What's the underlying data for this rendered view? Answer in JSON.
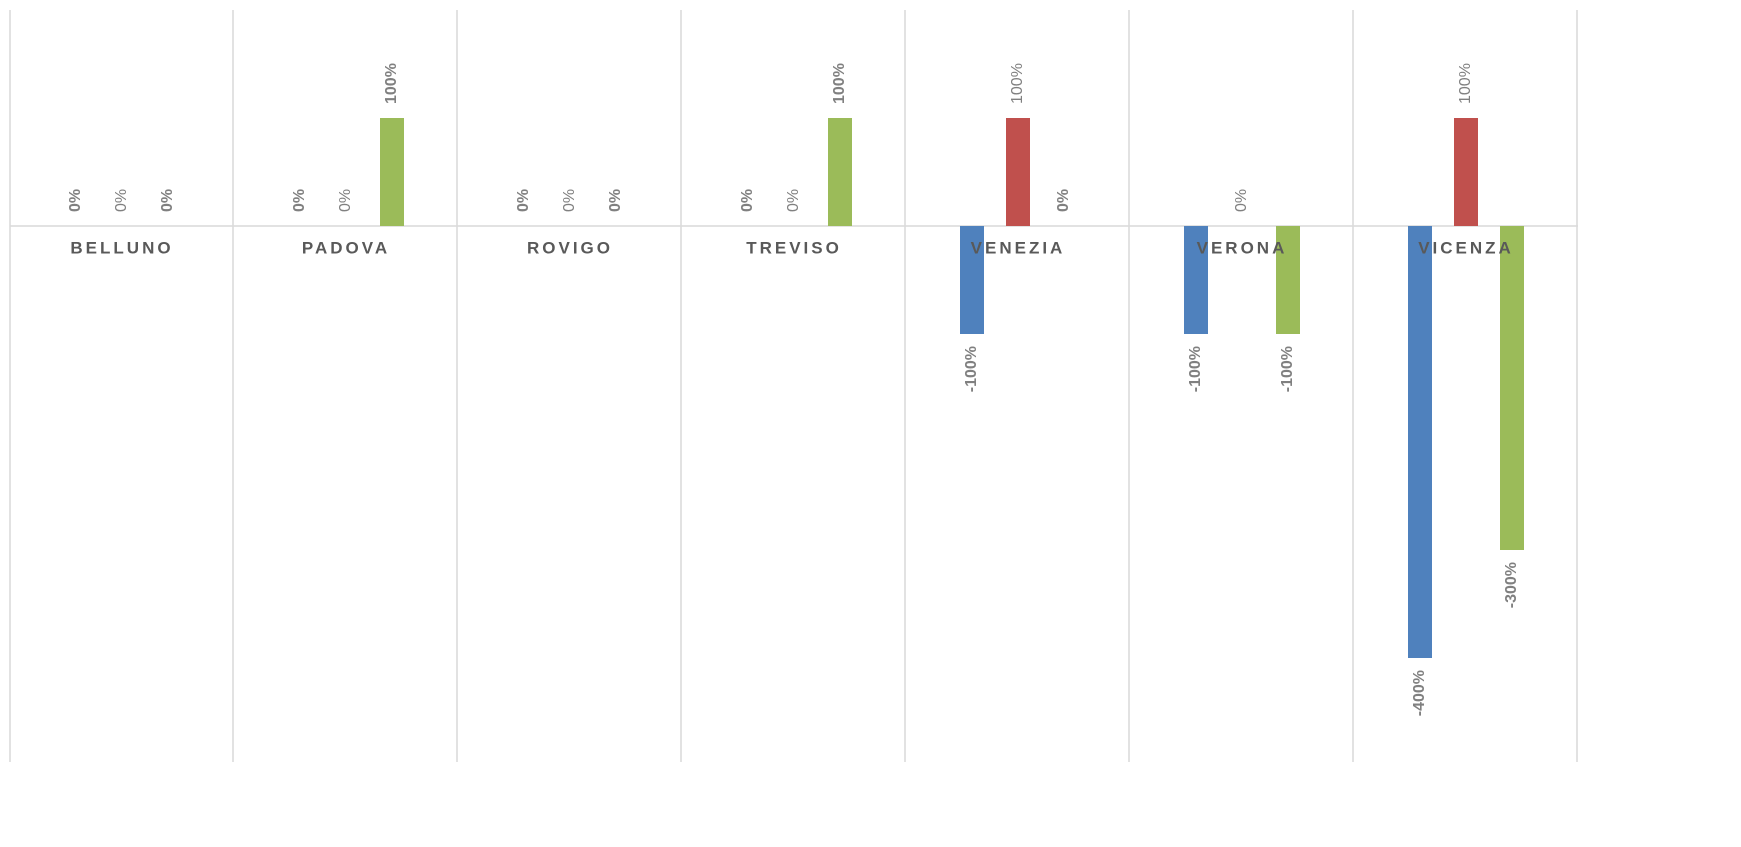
{
  "chart_data": {
    "type": "bar",
    "categories": [
      "BELLUNO",
      "PADOVA",
      "ROVIGO",
      "TREVISO",
      "VENEZIA",
      "VERONA",
      "VICENZA"
    ],
    "series": [
      {
        "color": "#4f81bd",
        "values": [
          0,
          0,
          0,
          0,
          -100,
          -100,
          -400
        ],
        "value_labels": [
          "0%",
          "0%",
          "0%",
          "0%",
          "-100%",
          "-100%",
          "-400%"
        ]
      },
      {
        "color": "#c0504d",
        "values": [
          0,
          0,
          0,
          0,
          100,
          0,
          100
        ],
        "value_labels": [
          "0%",
          "0%",
          "0%",
          "0%",
          "100%",
          "0%",
          "100%"
        ]
      },
      {
        "color": "#9bbb59",
        "values": [
          0,
          100,
          0,
          100,
          0,
          -100,
          -300
        ],
        "value_labels": [
          "0%",
          "100%",
          "0%",
          "100%",
          "0%",
          "-100%",
          "-300%"
        ]
      }
    ],
    "ylim": [
      -500,
      200
    ]
  }
}
